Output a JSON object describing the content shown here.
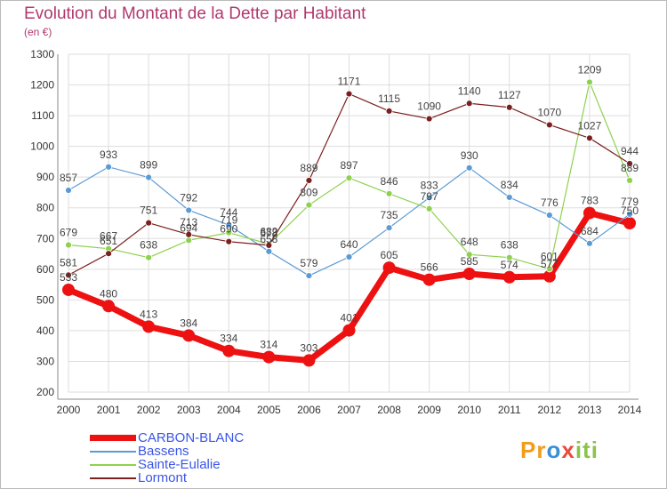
{
  "chart_data": {
    "type": "line",
    "title": "Evolution du Montant de la Dette par Habitant",
    "subtitle": "(en €)",
    "x": [
      "2000",
      "2001",
      "2002",
      "2003",
      "2004",
      "2005",
      "2006",
      "2007",
      "2008",
      "2009",
      "2010",
      "2011",
      "2012",
      "2013",
      "2014"
    ],
    "ylim": [
      200,
      1300
    ],
    "yticks": [
      200,
      300,
      400,
      500,
      600,
      700,
      800,
      900,
      1000,
      1100,
      1200,
      1300
    ],
    "grid": true,
    "legend_position": "bottom-left",
    "series": [
      {
        "name": "CARBON-BLANC",
        "color": "#ee1111",
        "width": 7,
        "values": [
          533,
          480,
          413,
          384,
          334,
          314,
          303,
          401,
          605,
          566,
          585,
          574,
          577,
          783,
          750
        ],
        "labels": [
          "533",
          "480",
          "413",
          "384",
          "334",
          "314",
          "303",
          "401",
          "605",
          "566",
          "585",
          "574",
          "577",
          "783",
          "750"
        ]
      },
      {
        "name": "Bassens",
        "color": "#5b9bd5",
        "width": 1.2,
        "values": [
          857,
          933,
          899,
          792,
          744,
          658,
          579,
          640,
          735,
          833,
          930,
          834,
          776,
          684,
          779
        ],
        "labels": [
          "857",
          "933",
          "899",
          "792",
          "744",
          "658",
          "579",
          "640",
          "735",
          "833",
          "930",
          "834",
          "776",
          "684",
          "779"
        ]
      },
      {
        "name": "Sainte-Eulalie",
        "color": "#8fd14f",
        "width": 1.2,
        "values": [
          679,
          667,
          638,
          694,
          719,
          682,
          809,
          897,
          846,
          797,
          648,
          638,
          601,
          1209,
          889
        ],
        "labels": [
          "679",
          "667",
          "638",
          "694",
          "719",
          "682",
          "809",
          "897",
          "846",
          "797",
          "648",
          "638",
          "601",
          "1209",
          "889"
        ]
      },
      {
        "name": "Lormont",
        "color": "#7b1f1f",
        "width": 1.2,
        "values": [
          581,
          651,
          751,
          713,
          690,
          678,
          889,
          1171,
          1115,
          1090,
          1140,
          1127,
          1070,
          1027,
          944
        ],
        "labels": [
          "581",
          "651",
          "751",
          "713",
          "690",
          "678",
          "889",
          "1171",
          "1115",
          "1090",
          "1140",
          "1127",
          "1070",
          "1027",
          "944"
        ]
      }
    ]
  },
  "legend_text_color": "#3b55e6",
  "logo": {
    "text": "Proxiti",
    "parts": [
      "Pr",
      "o",
      "x",
      "iti"
    ]
  }
}
